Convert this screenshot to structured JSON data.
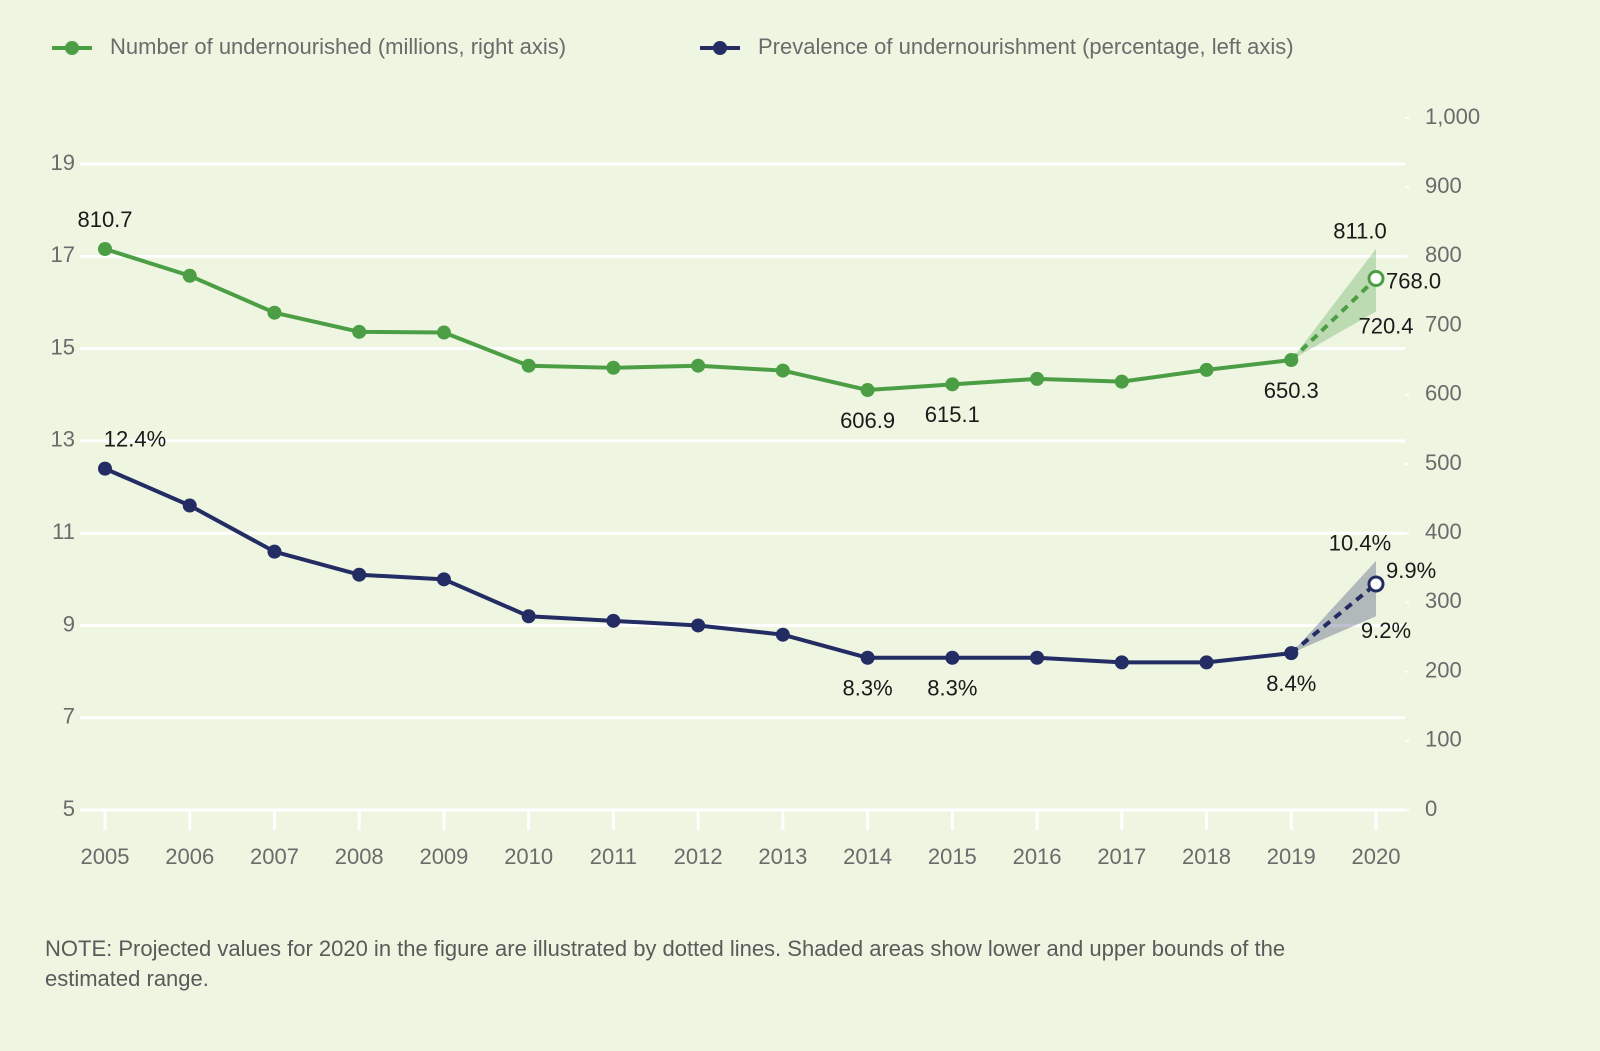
{
  "chart_data": {
    "type": "line",
    "categories": [
      "2005",
      "2006",
      "2007",
      "2008",
      "2009",
      "2010",
      "2011",
      "2012",
      "2013",
      "2014",
      "2015",
      "2016",
      "2017",
      "2018",
      "2019",
      "2020"
    ],
    "series": [
      {
        "name": "Number of undernourished (millions, right axis)",
        "color": "#4c9e45",
        "axis": "y2",
        "values": [
          810.7,
          772,
          718.6,
          691,
          690,
          642,
          639,
          642,
          635,
          606.9,
          615.1,
          623,
          619,
          636,
          650.3,
          768
        ],
        "value_labels": [
          "810.7",
          null,
          null,
          null,
          null,
          null,
          null,
          null,
          null,
          "606.9",
          "615.1",
          null,
          null,
          null,
          "650.3",
          "768.0"
        ],
        "range": [
          720.4,
          811
        ],
        "range_labels": [
          "720.4",
          "811.0"
        ]
      },
      {
        "name": "Prevalence of undernourishment (percentage, left axis)",
        "color": "#232d63",
        "axis": "y",
        "values": [
          12.4,
          11.6,
          10.6,
          10.1,
          10.0,
          9.2,
          9.1,
          9.0,
          8.8,
          8.3,
          8.3,
          8.3,
          8.2,
          8.2,
          8.4,
          9.9
        ],
        "value_labels": [
          "12.4%",
          null,
          null,
          null,
          null,
          null,
          null,
          null,
          null,
          "8.3%",
          "8.3%",
          null,
          null,
          null,
          "8.4%",
          "9.9%"
        ],
        "range": [
          9.2,
          10.4
        ],
        "range_labels": [
          "9.2%",
          "10.4%"
        ]
      }
    ],
    "ylim": [
      5,
      20
    ],
    "yticks": [
      5,
      7,
      9,
      11,
      13,
      15,
      17,
      19
    ],
    "y2lim": [
      0,
      1000
    ],
    "y2ticks": [
      0,
      100,
      200,
      300,
      400,
      500,
      600,
      700,
      800,
      900,
      {
        "value": 1000,
        "label": "1,000"
      }
    ],
    "grid": true,
    "note": "NOTE: Projected values for 2020 in the figure are illustrated by dotted lines. Shaded areas show lower and upper bounds of the estimated range."
  }
}
